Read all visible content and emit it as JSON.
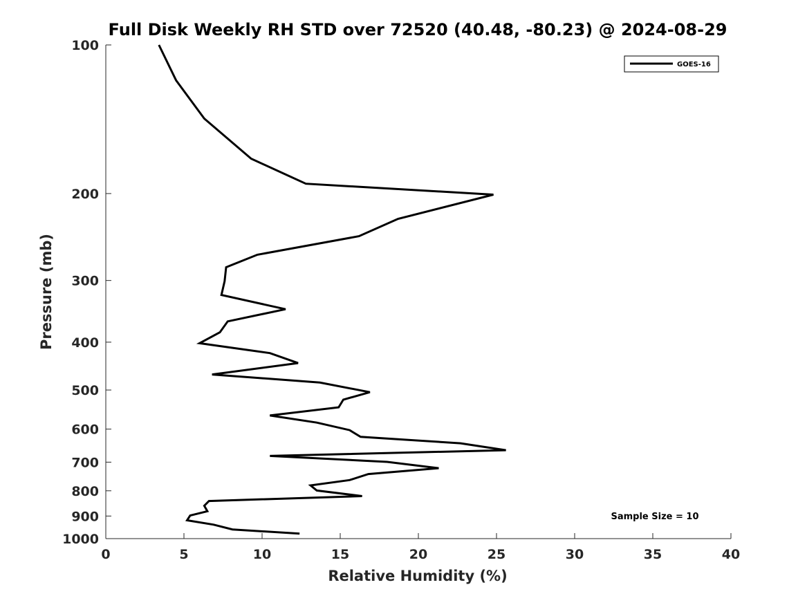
{
  "chart_data": {
    "type": "line",
    "title": "Full Disk Weekly RH STD over 72520 (40.48, -80.23) @ 2024-08-29",
    "xlabel": "Relative Humidity (%)",
    "ylabel": "Pressure (mb)",
    "xlim": [
      0,
      40
    ],
    "ylim": [
      100,
      1000
    ],
    "yscale": "log",
    "yaxis_reversed": true,
    "xticks": [
      0,
      5,
      10,
      15,
      20,
      25,
      30,
      35,
      40
    ],
    "yticks": [
      100,
      200,
      300,
      400,
      500,
      600,
      700,
      800,
      900,
      1000
    ],
    "grid": false,
    "legend_position": "top-right",
    "series": [
      {
        "name": "GOES-16",
        "color": "#000000",
        "points": [
          [
            3.4,
            100
          ],
          [
            4.5,
            118
          ],
          [
            6.3,
            141
          ],
          [
            9.3,
            170
          ],
          [
            12.8,
            191
          ],
          [
            24.8,
            201
          ],
          [
            18.7,
            225
          ],
          [
            16.2,
            244
          ],
          [
            9.7,
            266
          ],
          [
            7.7,
            282
          ],
          [
            7.6,
            301
          ],
          [
            7.4,
            321
          ],
          [
            11.5,
            343
          ],
          [
            7.8,
            363
          ],
          [
            7.3,
            382
          ],
          [
            6.0,
            402
          ],
          [
            10.5,
            421
          ],
          [
            12.3,
            441
          ],
          [
            6.8,
            465
          ],
          [
            13.7,
            483
          ],
          [
            16.9,
            505
          ],
          [
            15.2,
            523
          ],
          [
            14.9,
            542
          ],
          [
            10.5,
            563
          ],
          [
            13.5,
            582
          ],
          [
            15.6,
            603
          ],
          [
            16.3,
            622
          ],
          [
            22.7,
            641
          ],
          [
            25.6,
            662
          ],
          [
            10.5,
            680
          ],
          [
            18.0,
            699
          ],
          [
            21.3,
            720
          ],
          [
            16.8,
            740
          ],
          [
            15.6,
            761
          ],
          [
            13.1,
            780
          ],
          [
            13.5,
            799
          ],
          [
            16.4,
            820
          ],
          [
            6.6,
            839
          ],
          [
            6.3,
            858
          ],
          [
            6.5,
            880
          ],
          [
            5.4,
            898
          ],
          [
            5.2,
            918
          ],
          [
            6.9,
            937
          ],
          [
            8.1,
            958
          ],
          [
            12.4,
            977
          ]
        ]
      }
    ],
    "annotations": [
      "Sample Size = 10"
    ]
  }
}
